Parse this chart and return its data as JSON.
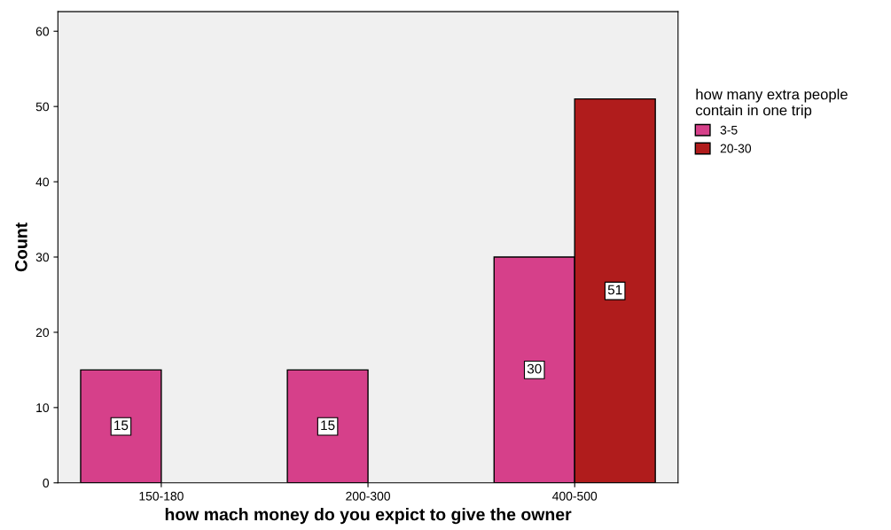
{
  "chart_data": {
    "type": "bar",
    "xlabel": "how mach money do you expict to give the owner",
    "ylabel": "Count",
    "legend_title": "how many extra people\ncontain in one trip",
    "categories": [
      "150-180",
      "200-300",
      "400-500"
    ],
    "series": [
      {
        "name": "3-5",
        "color": "#d6408a",
        "values": [
          15,
          15,
          30
        ]
      },
      {
        "name": "20-30",
        "color": "#b01c1c",
        "values": [
          null,
          null,
          51
        ]
      }
    ],
    "ylim": [
      0,
      62.6
    ],
    "yticks": [
      0,
      10,
      20,
      30,
      40,
      50,
      60
    ],
    "data_labels": true,
    "legend": "top right",
    "grid": false
  }
}
